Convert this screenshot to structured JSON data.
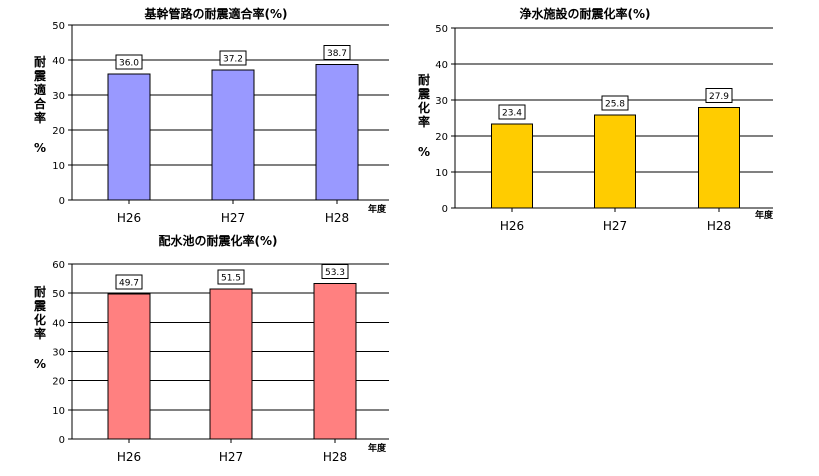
{
  "chart_data": [
    {
      "type": "bar",
      "title": "基幹管路の耐震適合率(%)",
      "categories": [
        "H26",
        "H27",
        "H28"
      ],
      "values": [
        36.0,
        37.2,
        38.7
      ],
      "value_labels": [
        "36.0",
        "37.2",
        "38.7"
      ],
      "ylabel": "耐震適合率%",
      "xlabel": "年度",
      "ylim": [
        0,
        50
      ],
      "yticks": [
        "0",
        "10",
        "20",
        "30",
        "40",
        "50"
      ],
      "color": "#9999FF",
      "grid": true
    },
    {
      "type": "bar",
      "title": "浄水施設の耐震化率(%)",
      "categories": [
        "H26",
        "H27",
        "H28"
      ],
      "values": [
        23.4,
        25.8,
        27.9
      ],
      "value_labels": [
        "23.4",
        "25.8",
        "27.9"
      ],
      "ylabel": "耐震化率%",
      "xlabel": "年度",
      "ylim": [
        0,
        50
      ],
      "yticks": [
        "0",
        "10",
        "20",
        "30",
        "40",
        "50"
      ],
      "color": "#FFCC00",
      "grid": true
    },
    {
      "type": "bar",
      "title": "配水池の耐震化率(%)",
      "categories": [
        "H26",
        "H27",
        "H28"
      ],
      "values": [
        49.7,
        51.5,
        53.3
      ],
      "value_labels": [
        "49.7",
        "51.5",
        "53.3"
      ],
      "ylabel": "耐震化率%",
      "xlabel": "年度",
      "ylim": [
        0,
        60
      ],
      "yticks": [
        "0",
        "10",
        "20",
        "30",
        "40",
        "50",
        "60"
      ],
      "color": "#FF8080",
      "grid": true
    }
  ]
}
